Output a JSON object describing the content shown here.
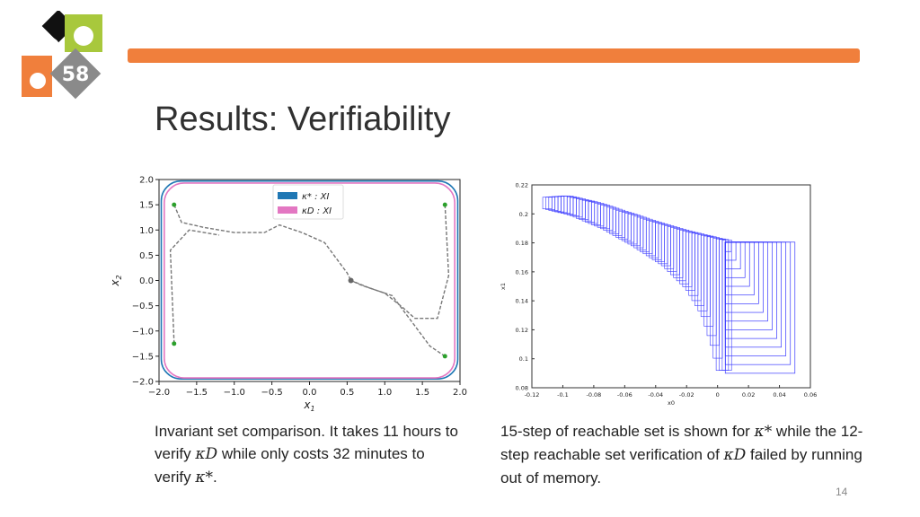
{
  "logo": {
    "badge_text": "58",
    "colors": {
      "black": "#111111",
      "green": "#a8c83c",
      "orange": "#f07f3c",
      "gray": "#8a8a8a"
    }
  },
  "header": {
    "accent_color": "#f07f3c",
    "title": "Results: Verifiability"
  },
  "figure_left": {
    "chart_data": {
      "type": "line",
      "xlabel": "x1",
      "ylabel": "x2",
      "xlim": [
        -2.0,
        2.0
      ],
      "ylim": [
        -2.0,
        2.0
      ],
      "xticks": [
        "−2.0",
        "−1.5",
        "−1.0",
        "−0.5",
        "0.0",
        "0.5",
        "1.0",
        "1.5",
        "2.0"
      ],
      "yticks": [
        "2.0",
        "1.5",
        "1.0",
        "0.5",
        "0.0",
        "−0.5",
        "−1.0",
        "−1.5",
        "−2.0"
      ],
      "legend": {
        "placement": "top-center",
        "entries": [
          {
            "label": "κ* : XI",
            "color": "#1f77b4"
          },
          {
            "label": "κD : XI",
            "color": "#e377c2"
          }
        ]
      },
      "series": [
        {
          "name": "κ* : XI",
          "color": "#1f77b4",
          "shape": "rounded-rectangle",
          "x_extent": [
            -1.97,
            1.97
          ],
          "y_extent": [
            -1.95,
            1.97
          ]
        },
        {
          "name": "κD : XI",
          "color": "#e377c2",
          "shape": "rounded-rectangle",
          "x_extent": [
            -1.93,
            1.93
          ],
          "y_extent": [
            -1.93,
            1.93
          ]
        }
      ],
      "trajectories": {
        "color": "#777777",
        "style": "dashed",
        "start_points": [
          [
            -1.8,
            1.5
          ],
          [
            1.8,
            1.5
          ],
          [
            -1.8,
            -1.25
          ],
          [
            1.8,
            -1.5
          ]
        ],
        "end_point": [
          0.55,
          0.0
        ],
        "paths": [
          [
            [
              -1.8,
              1.5
            ],
            [
              -1.7,
              1.15
            ],
            [
              -1.4,
              1.05
            ],
            [
              -1.0,
              0.95
            ],
            [
              -0.6,
              0.95
            ],
            [
              -0.4,
              1.1
            ],
            [
              -0.1,
              0.95
            ],
            [
              0.2,
              0.75
            ],
            [
              0.35,
              0.45
            ],
            [
              0.5,
              0.15
            ],
            [
              0.55,
              0.0
            ]
          ],
          [
            [
              1.8,
              1.5
            ],
            [
              1.85,
              0.1
            ],
            [
              1.7,
              -0.75
            ],
            [
              1.4,
              -0.75
            ],
            [
              1.25,
              -0.55
            ],
            [
              1.0,
              -0.25
            ],
            [
              0.8,
              -0.15
            ],
            [
              0.55,
              0.0
            ]
          ],
          [
            [
              -1.8,
              -1.25
            ],
            [
              -1.85,
              0.6
            ],
            [
              -1.6,
              1.0
            ],
            [
              -1.2,
              0.9
            ]
          ],
          [
            [
              1.8,
              -1.5
            ],
            [
              1.6,
              -1.3
            ],
            [
              1.4,
              -0.9
            ],
            [
              1.1,
              -0.3
            ],
            [
              0.7,
              -0.1
            ],
            [
              0.55,
              0.0
            ]
          ]
        ]
      }
    }
  },
  "figure_right": {
    "chart_data": {
      "type": "line",
      "xlabel": "x0",
      "ylabel": "x1",
      "xlim": [
        -0.12,
        0.06
      ],
      "ylim": [
        0.08,
        0.22
      ],
      "xticks": [
        "-0.12",
        "-0.1",
        "-0.08",
        "-0.06",
        "-0.04",
        "-0.02",
        "0",
        "0.02",
        "0.04",
        "0.06"
      ],
      "yticks": [
        "0.22",
        "0.2",
        "0.18",
        "0.16",
        "0.14",
        "0.12",
        "0.1",
        "0.08"
      ],
      "series": [
        {
          "name": "",
          "color": "#3b3bff",
          "steps": 15,
          "description_marks": "nested reachable-set boxes",
          "upper_envelope": [
            [
              -0.113,
              0.21
            ],
            [
              -0.1,
              0.211
            ],
            [
              -0.08,
              0.206
            ],
            [
              -0.06,
              0.199
            ],
            [
              -0.04,
              0.192
            ],
            [
              -0.02,
              0.186
            ],
            [
              0.0,
              0.181
            ],
            [
              0.006,
              0.18
            ],
            [
              0.05,
              0.18
            ]
          ],
          "lower_envelope": [
            [
              -0.113,
              0.205
            ],
            [
              -0.09,
              0.199
            ],
            [
              -0.07,
              0.19
            ],
            [
              -0.05,
              0.178
            ],
            [
              -0.03,
              0.164
            ],
            [
              -0.015,
              0.148
            ],
            [
              -0.005,
              0.13
            ],
            [
              0.001,
              0.11
            ],
            [
              0.005,
              0.092
            ]
          ],
          "box_right_x": [
            0.006,
            0.05
          ],
          "box_bottom_y": [
            0.09,
            0.18
          ]
        }
      ]
    }
  },
  "captions": {
    "left": {
      "p1": "Invariant set comparison.  It takes 11 hours to verify ",
      "m1": "κD",
      "p2": " while only costs 32 minutes to verify ",
      "m2": "κ*",
      "p3": "."
    },
    "right": {
      "p1": "15-step of reachable set is shown for ",
      "m1": "κ*",
      "p2": " while the 12-step reachable set verification of ",
      "m2": "κD",
      "p3": " failed by running out of memory."
    }
  },
  "page_number": "14"
}
